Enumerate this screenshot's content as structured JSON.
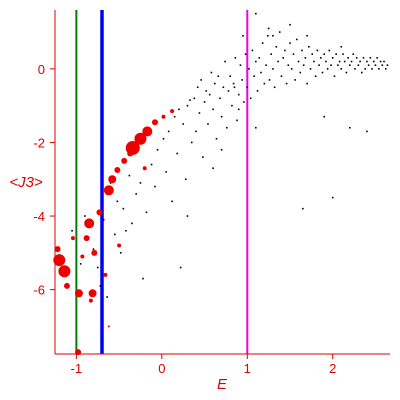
{
  "chart_data": {
    "type": "scatter",
    "xlabel": "E",
    "ylabel": "<J3>",
    "xlim": [
      -1.25,
      2.67
    ],
    "ylim": [
      -7.75,
      1.6
    ],
    "x_ticks": [
      {
        "value": -1,
        "label": "-1"
      },
      {
        "value": 0,
        "label": "0"
      },
      {
        "value": 1,
        "label": "1"
      },
      {
        "value": 2,
        "label": "2"
      }
    ],
    "y_ticks": [
      {
        "value": 0,
        "label": "0"
      },
      {
        "value": -2,
        "label": "-2"
      },
      {
        "value": -4,
        "label": "-4"
      },
      {
        "value": -6,
        "label": "-6"
      }
    ],
    "vertical_lines": [
      {
        "x": -1.0,
        "color": "#008000"
      },
      {
        "x": -0.7,
        "color": "#0000ee"
      },
      {
        "x": 1.0,
        "color": "#ee00ee"
      }
    ],
    "colors": {
      "axis": "#dd0000",
      "large_points": "#ee0000",
      "small_points": "#000000"
    },
    "large_points": [
      {
        "x": -1.22,
        "y": -4.9,
        "r": 3
      },
      {
        "x": -1.2,
        "y": -5.2,
        "r": 6
      },
      {
        "x": -1.14,
        "y": -5.5,
        "r": 6
      },
      {
        "x": -1.11,
        "y": -5.9,
        "r": 3
      },
      {
        "x": -1.04,
        "y": -4.6,
        "r": 2
      },
      {
        "x": -0.97,
        "y": -6.1,
        "r": 4
      },
      {
        "x": -0.93,
        "y": -5.1,
        "r": 2
      },
      {
        "x": -0.88,
        "y": -4.6,
        "r": 3
      },
      {
        "x": -0.85,
        "y": -4.2,
        "r": 5
      },
      {
        "x": -0.83,
        "y": -6.3,
        "r": 2
      },
      {
        "x": -0.81,
        "y": -6.1,
        "r": 4
      },
      {
        "x": -0.79,
        "y": -5.0,
        "r": 3
      },
      {
        "x": -0.73,
        "y": -3.9,
        "r": 3
      },
      {
        "x": -0.66,
        "y": -5.6,
        "r": 2
      },
      {
        "x": -0.62,
        "y": -3.3,
        "r": 5
      },
      {
        "x": -0.58,
        "y": -3.0,
        "r": 4
      },
      {
        "x": -0.52,
        "y": -2.75,
        "r": 3
      },
      {
        "x": -0.44,
        "y": -2.5,
        "r": 3
      },
      {
        "x": -0.37,
        "y": -2.3,
        "r": 3
      },
      {
        "x": -0.34,
        "y": -2.15,
        "r": 7
      },
      {
        "x": -0.25,
        "y": -1.9,
        "r": 6
      },
      {
        "x": -0.17,
        "y": -1.7,
        "r": 5
      },
      {
        "x": -0.08,
        "y": -1.45,
        "r": 3
      },
      {
        "x": 0.02,
        "y": -1.3,
        "r": 2
      },
      {
        "x": 0.12,
        "y": -1.15,
        "r": 2
      },
      {
        "x": -0.2,
        "y": -2.7,
        "r": 2
      },
      {
        "x": -0.5,
        "y": -4.8,
        "r": 2
      },
      {
        "x": -0.62,
        "y": -7.0,
        "r": 1
      },
      {
        "x": -0.98,
        "y": -7.7,
        "r": 3
      }
    ],
    "small_points": [
      [
        -1.05,
        -4.4
      ],
      [
        -0.95,
        -5.3
      ],
      [
        -0.9,
        -4.0
      ],
      [
        -0.8,
        -4.9
      ],
      [
        -0.75,
        -5.4
      ],
      [
        -0.72,
        -5.9
      ],
      [
        -0.68,
        -4.1
      ],
      [
        -0.64,
        -6.2
      ],
      [
        -0.6,
        -3.1
      ],
      [
        -0.55,
        -4.5
      ],
      [
        -0.52,
        -3.6
      ],
      [
        -0.48,
        -5.0
      ],
      [
        -0.45,
        -3.8
      ],
      [
        -0.42,
        -4.4
      ],
      [
        -0.38,
        -2.9
      ],
      [
        -0.35,
        -4.2
      ],
      [
        -0.3,
        -3.4
      ],
      [
        -0.25,
        -3.1
      ],
      [
        -0.22,
        -5.7
      ],
      [
        -0.18,
        -3.9
      ],
      [
        -0.12,
        -2.6
      ],
      [
        -0.08,
        -3.2
      ],
      [
        -0.05,
        -2.2
      ],
      [
        0.02,
        -1.9
      ],
      [
        0.05,
        -2.8
      ],
      [
        0.08,
        -1.7
      ],
      [
        0.12,
        -3.6
      ],
      [
        0.15,
        -1.3
      ],
      [
        0.18,
        -2.3
      ],
      [
        0.2,
        -1.1
      ],
      [
        0.22,
        -5.4
      ],
      [
        0.25,
        -1.5
      ],
      [
        0.28,
        -3.0
      ],
      [
        0.3,
        -1.0
      ],
      [
        0.33,
        -0.85
      ],
      [
        0.35,
        -2.0
      ],
      [
        0.38,
        -0.8
      ],
      [
        0.4,
        -1.7
      ],
      [
        0.42,
        -0.5
      ],
      [
        0.44,
        -1.2
      ],
      [
        0.46,
        -0.3
      ],
      [
        0.48,
        -2.4
      ],
      [
        0.5,
        -0.9
      ],
      [
        0.52,
        -0.6
      ],
      [
        0.54,
        -1.5
      ],
      [
        0.56,
        -0.7
      ],
      [
        0.58,
        -0.1
      ],
      [
        0.6,
        -1.1
      ],
      [
        0.62,
        -0.4
      ],
      [
        0.64,
        -1.9
      ],
      [
        0.66,
        -0.2
      ],
      [
        0.68,
        -0.8
      ],
      [
        0.7,
        -1.3
      ],
      [
        0.72,
        -0.5
      ],
      [
        0.74,
        0.2
      ],
      [
        0.76,
        -1.6
      ],
      [
        0.78,
        -0.6
      ],
      [
        0.8,
        -0.2
      ],
      [
        0.82,
        -1.0
      ],
      [
        0.84,
        -0.4
      ],
      [
        0.86,
        0.3
      ],
      [
        0.88,
        -1.4
      ],
      [
        0.9,
        -0.7
      ],
      [
        0.92,
        0.1
      ],
      [
        0.94,
        -0.3
      ],
      [
        0.96,
        -0.9
      ],
      [
        0.98,
        0.4
      ],
      [
        1.0,
        -0.5
      ],
      [
        1.02,
        0.0
      ],
      [
        1.04,
        -0.8
      ],
      [
        1.06,
        0.5
      ],
      [
        1.08,
        -0.2
      ],
      [
        1.1,
        0.2
      ],
      [
        1.12,
        -0.6
      ],
      [
        1.14,
        0.3
      ],
      [
        1.16,
        -0.1
      ],
      [
        1.18,
        0.7
      ],
      [
        1.2,
        -0.4
      ],
      [
        1.22,
        0.1
      ],
      [
        1.24,
        0.9
      ],
      [
        1.26,
        -0.3
      ],
      [
        1.28,
        0.4
      ],
      [
        1.3,
        0.0
      ],
      [
        1.32,
        -0.5
      ],
      [
        1.34,
        0.6
      ],
      [
        1.36,
        0.2
      ],
      [
        1.38,
        1.0
      ],
      [
        1.4,
        -0.2
      ],
      [
        1.42,
        0.3
      ],
      [
        1.44,
        0.5
      ],
      [
        1.46,
        -0.4
      ],
      [
        1.48,
        0.1
      ],
      [
        1.5,
        0.7
      ],
      [
        1.52,
        0.0
      ],
      [
        1.54,
        0.4
      ],
      [
        1.56,
        -0.3
      ],
      [
        1.58,
        0.8
      ],
      [
        1.6,
        0.2
      ],
      [
        1.62,
        -0.1
      ],
      [
        1.64,
        0.5
      ],
      [
        1.66,
        0.1
      ],
      [
        1.68,
        0.3
      ],
      [
        1.7,
        -0.4
      ],
      [
        1.72,
        0.6
      ],
      [
        1.74,
        0.0
      ],
      [
        1.76,
        0.4
      ],
      [
        1.78,
        0.2
      ],
      [
        1.8,
        -0.2
      ],
      [
        1.82,
        0.5
      ],
      [
        1.84,
        0.1
      ],
      [
        1.86,
        0.3
      ],
      [
        1.88,
        -0.1
      ],
      [
        1.9,
        0.4
      ],
      [
        1.92,
        0.2
      ],
      [
        1.94,
        0.0
      ],
      [
        1.96,
        0.5
      ],
      [
        1.98,
        0.1
      ],
      [
        2.0,
        0.3
      ],
      [
        2.02,
        -0.2
      ],
      [
        2.04,
        0.4
      ],
      [
        2.06,
        0.1
      ],
      [
        2.08,
        0.2
      ],
      [
        2.1,
        0.0
      ],
      [
        2.12,
        0.4
      ],
      [
        2.14,
        0.2
      ],
      [
        2.16,
        -0.1
      ],
      [
        2.18,
        0.3
      ],
      [
        2.2,
        0.1
      ],
      [
        2.22,
        0.2
      ],
      [
        2.24,
        0.4
      ],
      [
        2.26,
        0.0
      ],
      [
        2.28,
        0.3
      ],
      [
        2.3,
        0.1
      ],
      [
        2.32,
        0.2
      ],
      [
        2.34,
        -0.1
      ],
      [
        2.36,
        0.3
      ],
      [
        2.38,
        0.0
      ],
      [
        2.4,
        0.2
      ],
      [
        2.42,
        0.1
      ],
      [
        2.44,
        0.3
      ],
      [
        2.46,
        0.0
      ],
      [
        2.48,
        0.2
      ],
      [
        2.5,
        0.1
      ],
      [
        2.52,
        0.3
      ],
      [
        2.54,
        0.0
      ],
      [
        2.56,
        0.2
      ],
      [
        2.58,
        0.1
      ],
      [
        2.6,
        0.2
      ],
      [
        2.62,
        0.0
      ],
      [
        2.64,
        0.1
      ],
      [
        0.3,
        -4.0
      ],
      [
        0.6,
        -2.7
      ],
      [
        0.9,
        -1.1
      ],
      [
        0.85,
        -0.5
      ],
      [
        1.65,
        -3.8
      ],
      [
        2.0,
        -3.5
      ],
      [
        1.1,
        -1.6
      ],
      [
        0.7,
        -2.2
      ],
      [
        2.2,
        -1.6
      ],
      [
        2.4,
        -1.7
      ],
      [
        1.9,
        -1.3
      ],
      [
        1.3,
        0.9
      ],
      [
        1.5,
        1.2
      ],
      [
        1.1,
        1.5
      ],
      [
        0.95,
        0.9
      ],
      [
        1.25,
        1.1
      ],
      [
        1.7,
        0.9
      ],
      [
        2.1,
        0.6
      ]
    ]
  }
}
